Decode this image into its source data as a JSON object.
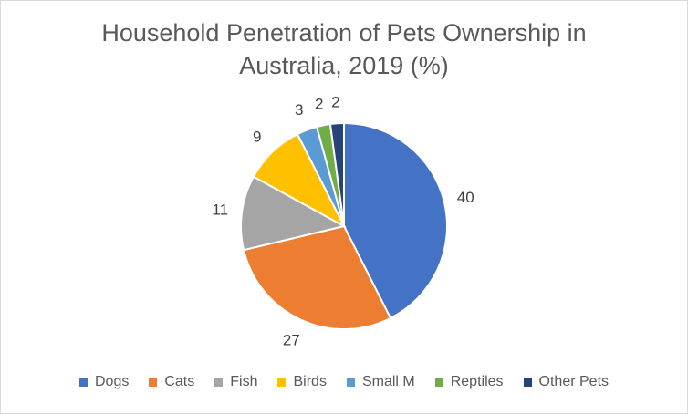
{
  "chart_data": {
    "type": "pie",
    "title": "Household Penetration of Pets Ownership in Australia, 2019 (%)",
    "title_lines": [
      "Household Penetration of Pets Ownership in",
      "Australia, 2019 (%)"
    ],
    "start_angle_deg": 0,
    "direction": "clockwise",
    "legend_position": "bottom",
    "slices": [
      {
        "label": "Dogs",
        "value": 40,
        "color": "#4472C4"
      },
      {
        "label": "Cats",
        "value": 27,
        "color": "#ED7D31"
      },
      {
        "label": "Fish",
        "value": 11,
        "color": "#A5A5A5"
      },
      {
        "label": "Birds",
        "value": 9,
        "color": "#FFC000"
      },
      {
        "label": "Small M",
        "value": 3,
        "color": "#5B9BD5"
      },
      {
        "label": "Reptiles",
        "value": 2,
        "color": "#70AD47"
      },
      {
        "label": "Other Pets",
        "value": 2,
        "color": "#264478"
      }
    ]
  }
}
